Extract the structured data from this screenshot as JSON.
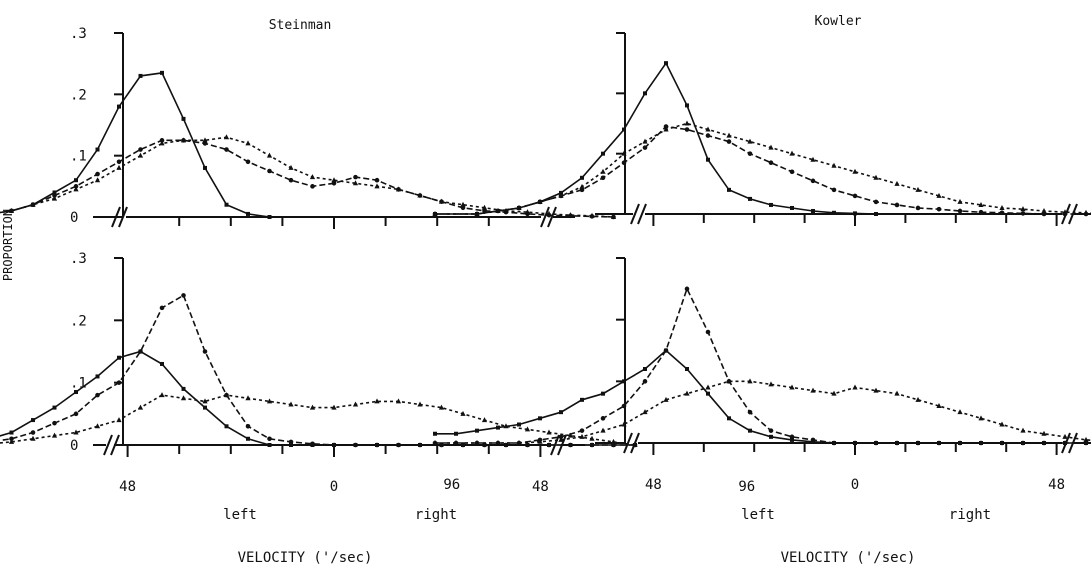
{
  "figure": {
    "y_axis_label": "PROPORTION",
    "x_axis_label": "VELOCITY ('/sec)",
    "direction_labels": [
      "left",
      "right"
    ],
    "y_tick_labels": [
      ".3",
      ".2",
      ".1",
      "0"
    ],
    "x_tick_labels": [
      "96",
      "48",
      "0",
      "48",
      "96"
    ]
  },
  "chart_data": [
    {
      "type": "line",
      "subject": "Steinman",
      "title": "Steinman",
      "row": "top",
      "xlim": [
        -112,
        112
      ],
      "ylim": [
        0,
        0.3
      ],
      "x_ticks": [
        -96,
        -48,
        0,
        48,
        96
      ],
      "y_ticks": [
        0,
        0.1,
        0.2,
        0.3
      ],
      "series": [
        {
          "x": [
            -100,
            -90,
            -80,
            -75,
            -70,
            -65,
            -60,
            -55,
            -50,
            -45,
            -40,
            -35,
            -30,
            -25,
            -20,
            -15
          ],
          "values": [
            0,
            0,
            0.005,
            0.01,
            0.02,
            0.04,
            0.06,
            0.11,
            0.18,
            0.23,
            0.235,
            0.16,
            0.08,
            0.02,
            0.005,
            0
          ]
        },
        {
          "x": [
            -100,
            -90,
            -80,
            -75,
            -70,
            -65,
            -60,
            -55,
            -50,
            -45,
            -40,
            -35,
            -30,
            -25,
            -20,
            -15,
            -10,
            -5,
            0,
            5,
            10,
            15,
            20,
            25,
            30,
            35,
            40,
            45,
            50,
            55,
            60,
            65
          ],
          "values": [
            0,
            0,
            0.005,
            0.01,
            0.02,
            0.035,
            0.05,
            0.07,
            0.09,
            0.11,
            0.125,
            0.125,
            0.12,
            0.11,
            0.09,
            0.075,
            0.06,
            0.05,
            0.055,
            0.065,
            0.06,
            0.045,
            0.035,
            0.025,
            0.015,
            0.01,
            0.008,
            0.005,
            0.003,
            0.002,
            0.001,
            0
          ]
        },
        {
          "x": [
            -100,
            -90,
            -80,
            -75,
            -70,
            -65,
            -60,
            -55,
            -50,
            -45,
            -40,
            -35,
            -30,
            -25,
            -20,
            -15,
            -10,
            -5,
            0,
            5,
            10,
            15,
            20,
            25,
            30,
            35,
            40,
            45,
            50,
            55,
            60,
            65
          ],
          "values": [
            0,
            0,
            0.005,
            0.01,
            0.02,
            0.03,
            0.045,
            0.06,
            0.08,
            0.1,
            0.12,
            0.125,
            0.125,
            0.13,
            0.12,
            0.1,
            0.08,
            0.065,
            0.06,
            0.055,
            0.05,
            0.045,
            0.035,
            0.025,
            0.02,
            0.015,
            0.01,
            0.008,
            0.005,
            0.003,
            0.002,
            0
          ]
        }
      ]
    },
    {
      "type": "line",
      "subject": "Kowler",
      "title": "Kowler",
      "row": "top",
      "xlim": [
        -112,
        112
      ],
      "ylim": [
        0,
        0.3
      ],
      "x_ticks": [
        -96,
        -48,
        0,
        48,
        96
      ],
      "y_ticks": [
        0,
        0.1,
        0.2,
        0.3
      ],
      "series": [
        {
          "x": [
            -100,
            -90,
            -85,
            -80,
            -75,
            -70,
            -65,
            -60,
            -55,
            -50,
            -45,
            -40,
            -35,
            -30,
            -25,
            -20,
            -15,
            -10,
            -5,
            0,
            5
          ],
          "values": [
            0,
            0,
            0.005,
            0.01,
            0.02,
            0.035,
            0.06,
            0.1,
            0.14,
            0.2,
            0.25,
            0.18,
            0.09,
            0.04,
            0.025,
            0.015,
            0.01,
            0.005,
            0.002,
            0.001,
            0
          ]
        },
        {
          "x": [
            -100,
            -90,
            -85,
            -80,
            -75,
            -70,
            -65,
            -60,
            -55,
            -50,
            -45,
            -40,
            -35,
            -30,
            -25,
            -20,
            -15,
            -10,
            -5,
            0,
            5,
            10,
            15,
            20,
            25,
            30,
            35,
            40,
            45,
            50,
            55,
            60,
            65
          ],
          "values": [
            0,
            0,
            0.005,
            0.01,
            0.02,
            0.03,
            0.04,
            0.06,
            0.085,
            0.11,
            0.145,
            0.14,
            0.13,
            0.12,
            0.1,
            0.085,
            0.07,
            0.055,
            0.04,
            0.03,
            0.02,
            0.015,
            0.01,
            0.008,
            0.005,
            0.003,
            0.002,
            0.001,
            0,
            0,
            0,
            0,
            0
          ]
        },
        {
          "x": [
            -100,
            -90,
            -85,
            -80,
            -75,
            -70,
            -65,
            -60,
            -55,
            -50,
            -45,
            -40,
            -35,
            -30,
            -25,
            -20,
            -15,
            -10,
            -5,
            0,
            5,
            10,
            15,
            20,
            25,
            30,
            35,
            40,
            45,
            50,
            55,
            60,
            65
          ],
          "values": [
            0,
            0,
            0.005,
            0.01,
            0.02,
            0.03,
            0.045,
            0.07,
            0.1,
            0.12,
            0.14,
            0.15,
            0.14,
            0.13,
            0.12,
            0.11,
            0.1,
            0.09,
            0.08,
            0.07,
            0.06,
            0.05,
            0.04,
            0.03,
            0.02,
            0.015,
            0.01,
            0.008,
            0.005,
            0.003,
            0.002,
            0.001,
            0
          ]
        }
      ]
    },
    {
      "type": "line",
      "subject": "Steinman",
      "title": "",
      "row": "bottom",
      "xlim": [
        -112,
        112
      ],
      "ylim": [
        0,
        0.3
      ],
      "x_ticks": [
        -96,
        -48,
        0,
        48,
        96
      ],
      "y_ticks": [
        0,
        0.1,
        0.2,
        0.3
      ],
      "series": [
        {
          "x": [
            -100,
            -95,
            -90,
            -85,
            -80,
            -75,
            -70,
            -65,
            -60,
            -55,
            -50,
            -45,
            -40,
            -35,
            -30,
            -25,
            -20,
            -15,
            -10,
            -5,
            0,
            5,
            10,
            15,
            20,
            25,
            30,
            35,
            40,
            45,
            50,
            55,
            60,
            65,
            70
          ],
          "values": [
            0,
            0.002,
            0.005,
            0.005,
            0.01,
            0.02,
            0.04,
            0.06,
            0.085,
            0.11,
            0.14,
            0.15,
            0.13,
            0.09,
            0.06,
            0.03,
            0.01,
            0,
            0,
            0,
            0,
            0,
            0,
            0,
            0,
            0,
            0,
            0,
            0,
            0,
            0,
            0,
            0,
            0,
            0
          ]
        },
        {
          "x": [
            -100,
            -95,
            -90,
            -85,
            -80,
            -75,
            -70,
            -65,
            -60,
            -55,
            -50,
            -45,
            -40,
            -35,
            -30,
            -25,
            -20,
            -15,
            -10,
            -5,
            0,
            5,
            10,
            15,
            20,
            25,
            30,
            35,
            40,
            45,
            50,
            55,
            60,
            65,
            70
          ],
          "values": [
            0,
            0,
            0,
            0.002,
            0.005,
            0.01,
            0.02,
            0.035,
            0.05,
            0.08,
            0.1,
            0.15,
            0.22,
            0.24,
            0.15,
            0.08,
            0.03,
            0.01,
            0.005,
            0.002,
            0,
            0,
            0,
            0,
            0,
            0,
            0,
            0,
            0,
            0,
            0,
            0,
            0,
            0,
            0
          ]
        },
        {
          "x": [
            -100,
            -95,
            -90,
            -85,
            -80,
            -75,
            -70,
            -65,
            -60,
            -55,
            -50,
            -45,
            -40,
            -35,
            -30,
            -25,
            -20,
            -15,
            -10,
            -5,
            0,
            5,
            10,
            15,
            20,
            25,
            30,
            35,
            40,
            45,
            50,
            55,
            60,
            65,
            70
          ],
          "values": [
            0,
            0,
            0,
            0,
            0.002,
            0.005,
            0.01,
            0.015,
            0.02,
            0.03,
            0.04,
            0.06,
            0.08,
            0.075,
            0.07,
            0.08,
            0.075,
            0.07,
            0.065,
            0.06,
            0.06,
            0.065,
            0.07,
            0.07,
            0.065,
            0.06,
            0.05,
            0.04,
            0.03,
            0.025,
            0.02,
            0.015,
            0.01,
            0.005,
            0
          ]
        }
      ]
    },
    {
      "type": "line",
      "subject": "Kowler",
      "title": "",
      "row": "bottom",
      "xlim": [
        -112,
        112
      ],
      "ylim": [
        0,
        0.3
      ],
      "x_ticks": [
        -96,
        -48,
        0,
        48,
        96
      ],
      "y_ticks": [
        0,
        0.1,
        0.2,
        0.3
      ],
      "series": [
        {
          "x": [
            -100,
            -95,
            -90,
            -85,
            -80,
            -75,
            -70,
            -65,
            -60,
            -55,
            -50,
            -45,
            -40,
            -35,
            -30,
            -25,
            -20,
            -15,
            -10,
            -5,
            0,
            5,
            10,
            15,
            20,
            25,
            30,
            35,
            40,
            45,
            50,
            55,
            60,
            65,
            70
          ],
          "values": [
            0.015,
            0.015,
            0.02,
            0.025,
            0.03,
            0.04,
            0.05,
            0.07,
            0.08,
            0.1,
            0.12,
            0.15,
            0.12,
            0.08,
            0.04,
            0.02,
            0.01,
            0.005,
            0.002,
            0,
            0,
            0,
            0,
            0,
            0,
            0,
            0,
            0,
            0,
            0,
            0,
            0,
            0,
            0,
            0
          ]
        },
        {
          "x": [
            -100,
            -95,
            -90,
            -85,
            -80,
            -75,
            -70,
            -65,
            -60,
            -55,
            -50,
            -45,
            -40,
            -35,
            -30,
            -25,
            -20,
            -15,
            -10,
            -5,
            0,
            5,
            10,
            15,
            20,
            25,
            30,
            35,
            40,
            45,
            50,
            55,
            60,
            65,
            70
          ],
          "values": [
            0,
            0,
            0,
            0,
            0,
            0.005,
            0.01,
            0.02,
            0.04,
            0.06,
            0.1,
            0.15,
            0.25,
            0.18,
            0.1,
            0.05,
            0.02,
            0.01,
            0.005,
            0,
            0,
            0,
            0,
            0,
            0,
            0,
            0,
            0,
            0,
            0,
            0,
            0,
            0,
            0,
            0
          ]
        },
        {
          "x": [
            -100,
            -95,
            -90,
            -85,
            -80,
            -75,
            -70,
            -65,
            -60,
            -55,
            -50,
            -45,
            -40,
            -35,
            -30,
            -25,
            -20,
            -15,
            -10,
            -5,
            0,
            5,
            10,
            15,
            20,
            25,
            30,
            35,
            40,
            45,
            50,
            55,
            60,
            65,
            70
          ],
          "values": [
            0,
            0,
            0,
            0,
            0,
            0.002,
            0.005,
            0.01,
            0.02,
            0.03,
            0.05,
            0.07,
            0.08,
            0.09,
            0.1,
            0.1,
            0.095,
            0.09,
            0.085,
            0.08,
            0.09,
            0.085,
            0.08,
            0.07,
            0.06,
            0.05,
            0.04,
            0.03,
            0.02,
            0.015,
            0.01,
            0.005,
            0.003,
            0.001,
            0
          ]
        }
      ]
    }
  ]
}
